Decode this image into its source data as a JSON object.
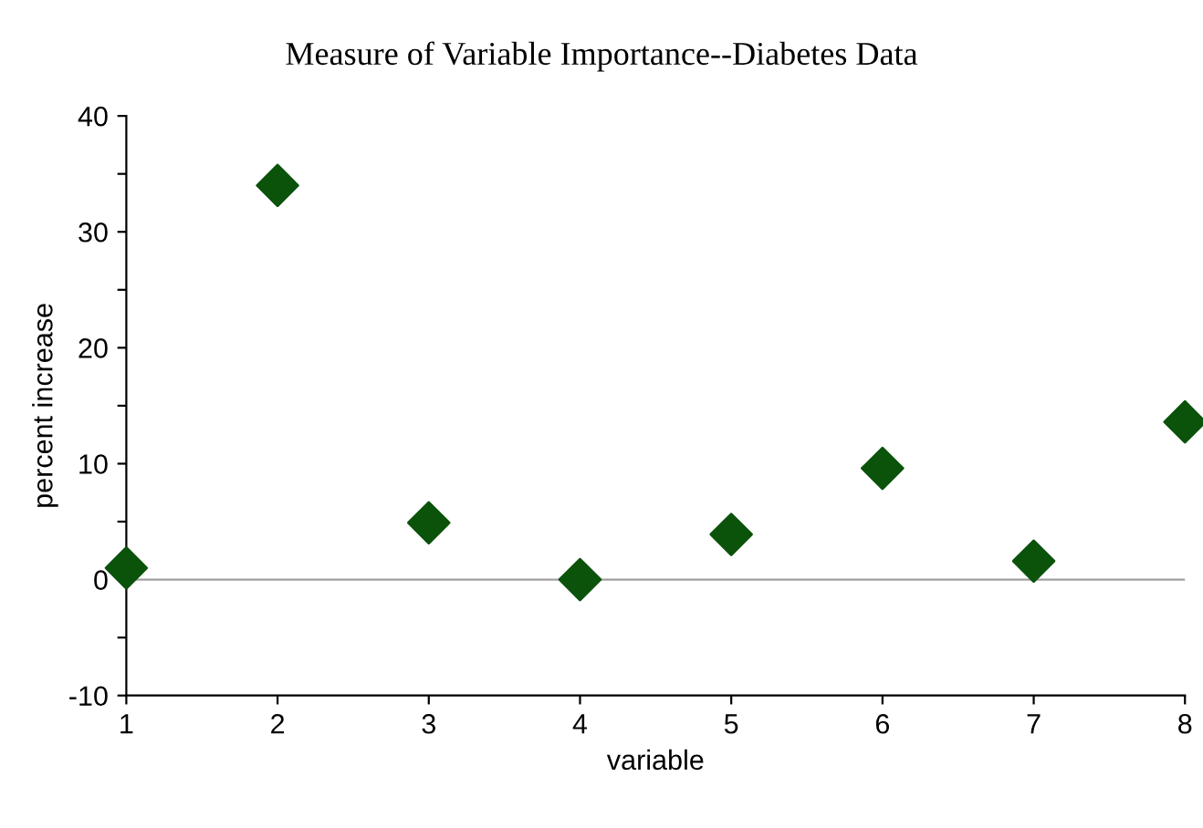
{
  "chart_data": {
    "type": "scatter",
    "title": "Measure of Variable Importance--Diabetes Data",
    "xlabel": "variable",
    "ylabel": "percent increase",
    "x": [
      1,
      2,
      3,
      4,
      5,
      6,
      7,
      8
    ],
    "series": [
      {
        "color": "#0b520b",
        "values": [
          1,
          34,
          4.9,
          0,
          3.9,
          9.6,
          1.6,
          13.6
        ]
      }
    ],
    "marker": "diamond",
    "xlim": [
      1,
      8
    ],
    "xticks": [
      1,
      2,
      3,
      4,
      5,
      6,
      7,
      8
    ],
    "ylim": [
      -10,
      40
    ],
    "yticks": [
      -10,
      {
        "value": -5,
        "label": null
      },
      0,
      {
        "value": 5,
        "label": null
      },
      10,
      {
        "value": 15,
        "label": null
      },
      20,
      {
        "value": 25,
        "label": null
      },
      30,
      {
        "value": 35,
        "label": null
      },
      40
    ],
    "ref_lines": [
      {
        "axis": "y",
        "value": 0,
        "color": "#a0a0a0"
      }
    ],
    "grid": false,
    "legend": false
  }
}
